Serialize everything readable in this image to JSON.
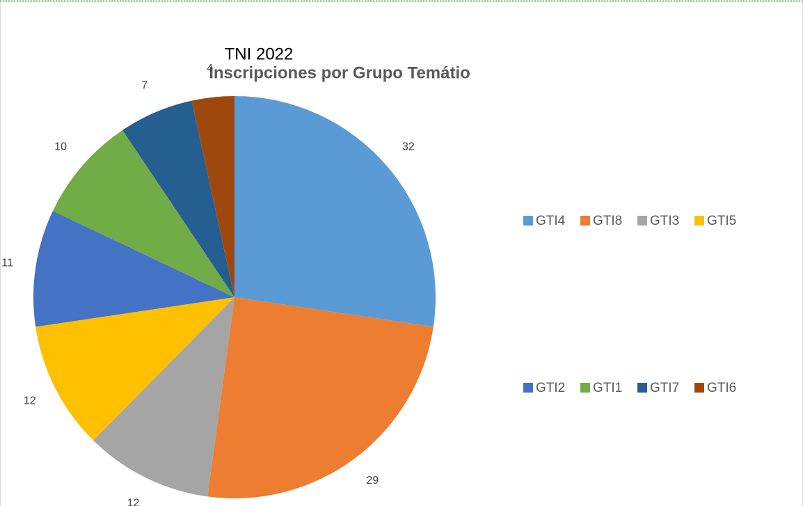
{
  "chart_data": {
    "type": "pie",
    "title": "TNI 2022",
    "subtitle": "Inscripciones por Grupo Temátio",
    "categories": [
      "GTI4",
      "GTI8",
      "GTI3",
      "GTI5",
      "GTI2",
      "GTI1",
      "GTI7",
      "GTI6"
    ],
    "values": [
      32,
      29,
      12,
      12,
      11,
      10,
      7,
      4
    ],
    "colors": [
      "#5b9bd5",
      "#ed7d31",
      "#a5a5a5",
      "#ffc000",
      "#4472c4",
      "#70ad47",
      "#255e91",
      "#9e480e"
    ],
    "legend": "right"
  }
}
